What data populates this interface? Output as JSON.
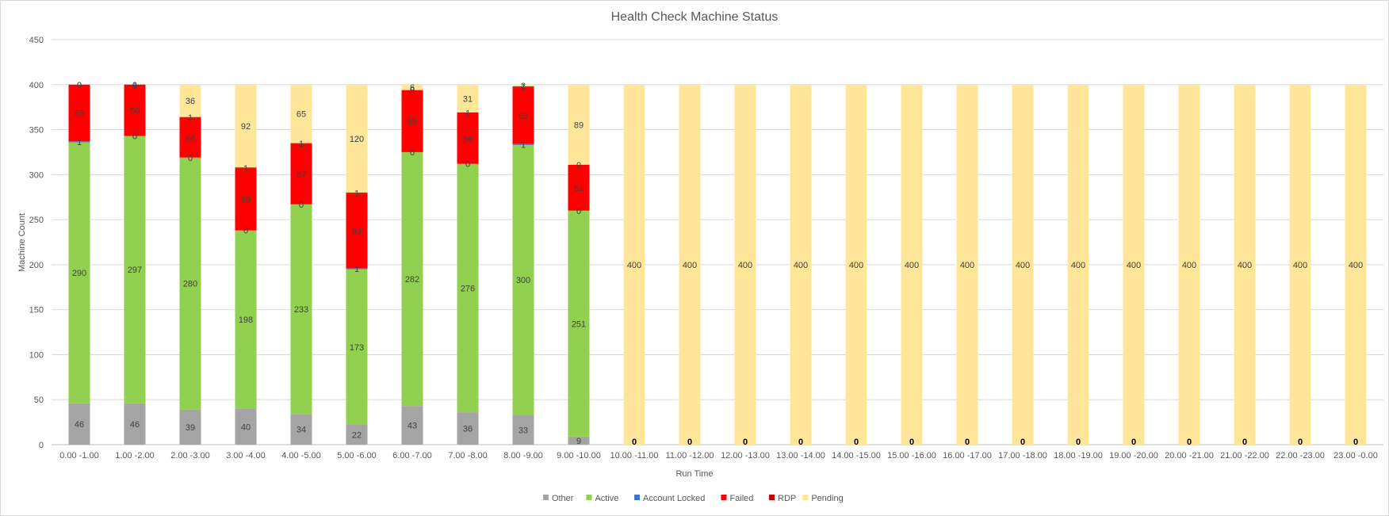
{
  "chart_data": {
    "type": "bar",
    "stacked": true,
    "title": "Health Check Machine Status",
    "xlabel": "Run Time",
    "ylabel": "Machine Count",
    "ylim": [
      0,
      450
    ],
    "yticks": [
      0,
      50,
      100,
      150,
      200,
      250,
      300,
      350,
      400,
      450
    ],
    "grid": true,
    "legend_position": "bottom",
    "categories": [
      "0.00 -1.00",
      "1.00 -2.00",
      "2.00 -3.00",
      "3.00 -4.00",
      "4.00 -5.00",
      "5.00 -6.00",
      "6.00 -7.00",
      "7.00 -8.00",
      "8.00 -9.00",
      "9.00 -10.00",
      "10.00 -11.00",
      "11.00 -12.00",
      "12.00 -13.00",
      "13.00 -14.00",
      "14.00 -15.00",
      "15.00 -16.00",
      "16.00 -17.00",
      "17.00 -18.00",
      "18.00 -19.00",
      "19.00 -20.00",
      "20.00 -21.00",
      "21.00 -22.00",
      "22.00 -23.00",
      "23.00 -0.00"
    ],
    "series": [
      {
        "name": "Other",
        "color": "#a5a5a5",
        "values": [
          46,
          46,
          39,
          40,
          34,
          22,
          43,
          36,
          33,
          9,
          0,
          0,
          0,
          0,
          0,
          0,
          0,
          0,
          0,
          0,
          0,
          0,
          0,
          0
        ]
      },
      {
        "name": "Active",
        "color": "#92d050",
        "values": [
          290,
          297,
          280,
          198,
          233,
          173,
          282,
          276,
          300,
          251,
          0,
          0,
          0,
          0,
          0,
          0,
          0,
          0,
          0,
          0,
          0,
          0,
          0,
          0
        ]
      },
      {
        "name": "Account Locked",
        "color": "#4472c4",
        "values": [
          1,
          0,
          0,
          0,
          0,
          1,
          0,
          0,
          1,
          0,
          0,
          0,
          0,
          0,
          0,
          0,
          0,
          0,
          0,
          0,
          0,
          0,
          0,
          0
        ]
      },
      {
        "name": "Failed",
        "color": "#ff0000",
        "values": [
          63,
          56,
          44,
          69,
          67,
          83,
          69,
          56,
          63,
          51,
          0,
          0,
          0,
          0,
          0,
          0,
          0,
          0,
          0,
          0,
          0,
          0,
          0,
          0
        ]
      },
      {
        "name": "RDP",
        "color": "#c00000",
        "values": [
          0,
          1,
          1,
          1,
          1,
          1,
          0,
          1,
          1,
          0,
          0,
          0,
          0,
          0,
          0,
          0,
          0,
          0,
          0,
          0,
          0,
          0,
          0,
          0
        ]
      },
      {
        "name": "Pending",
        "color": "#ffe699",
        "values": [
          0,
          0,
          36,
          92,
          65,
          120,
          6,
          31,
          2,
          89,
          400,
          400,
          400,
          400,
          400,
          400,
          400,
          400,
          400,
          400,
          400,
          400,
          400,
          400
        ]
      }
    ]
  }
}
